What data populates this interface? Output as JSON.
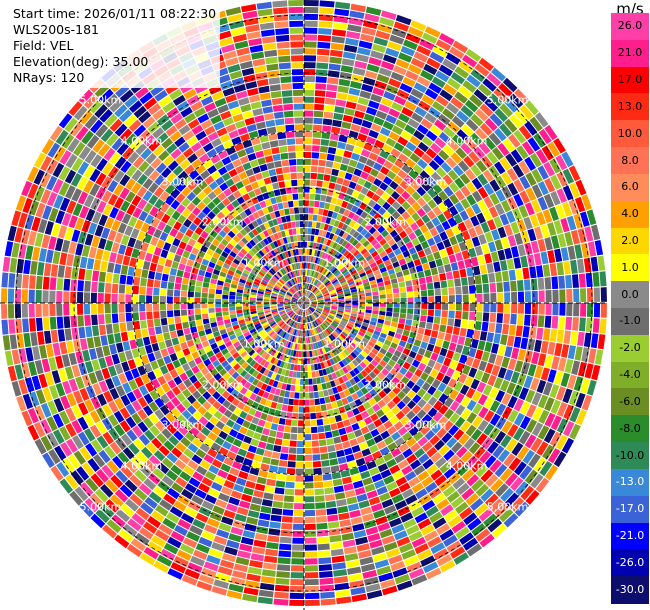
{
  "info": {
    "start_time": "Start time: 2026/01/11 08:22:30",
    "station": "WLS200s-181",
    "field": "Field: VEL",
    "elevation": "Elevation(deg): 35.00",
    "nrays": "NRays: 120"
  },
  "colorbar": {
    "unit": "m/s",
    "labels": [
      "26.0",
      "21.0",
      "17.0",
      "13.0",
      "10.0",
      "8.0",
      "6.0",
      "4.0",
      "2.0",
      "1.0",
      "0.0",
      "-1.0",
      "-2.0",
      "-4.0",
      "-6.0",
      "-8.0",
      "-10.0",
      "-13.0",
      "-17.0",
      "-21.0",
      "-26.0",
      "-30.0"
    ],
    "colors": [
      "#ff3fa8",
      "#ff1e8c",
      "#ff0000",
      "#ff2a14",
      "#ff5a3c",
      "#ff7256",
      "#ff8c5a",
      "#ff9f00",
      "#ffd700",
      "#ffff00",
      "#8a8a8a",
      "#6e6e6e",
      "#9acd32",
      "#7fae28",
      "#6b8e23",
      "#2a8c2a",
      "#2e8b57",
      "#3a88d8",
      "#3b62d6",
      "#0000ff",
      "#0000b0",
      "#0d0d6e"
    ]
  },
  "range_rings": [
    "1.00km",
    "2.00km",
    "3.00km",
    "4.00km",
    "5.00km"
  ]
}
